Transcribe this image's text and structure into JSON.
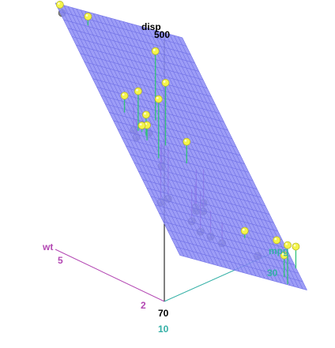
{
  "chart_data": {
    "type": "scatter3d",
    "axes": {
      "z": {
        "label": "disp",
        "tick": "500",
        "color": "#000000"
      },
      "x": {
        "label": "wt",
        "ticks": [
          "5",
          "2"
        ],
        "color": "#b347b3"
      },
      "y": {
        "label": "mpg",
        "ticks": [
          "30",
          "10"
        ],
        "color": "#33b0a6"
      },
      "origin_label": "70"
    },
    "regression_plane": {
      "fill": "#8c8cf5",
      "grid_color": "#6f6fe6",
      "present": true
    },
    "colors": {
      "above_point": "#f4f44a",
      "below_point": "#8a8a8a",
      "above_residual": "#33c27a",
      "below_residual": "#b347b3"
    },
    "points": [
      {
        "wt": 5.42,
        "mpg": 10.4,
        "disp": 472
      },
      {
        "wt": 5.35,
        "mpg": 10.4,
        "disp": 460
      },
      {
        "wt": 5.25,
        "mpg": 14.7,
        "disp": 440
      },
      {
        "wt": 3.84,
        "mpg": 13.3,
        "disp": 350
      },
      {
        "wt": 3.44,
        "mpg": 18.7,
        "disp": 360
      },
      {
        "wt": 3.57,
        "mpg": 14.3,
        "disp": 360
      },
      {
        "wt": 3.73,
        "mpg": 17.3,
        "disp": 275.8
      },
      {
        "wt": 3.78,
        "mpg": 15.2,
        "disp": 275.8
      },
      {
        "wt": 4.07,
        "mpg": 16.4,
        "disp": 275.8
      },
      {
        "wt": 3.52,
        "mpg": 15.5,
        "disp": 318
      },
      {
        "wt": 3.44,
        "mpg": 15.2,
        "disp": 304
      },
      {
        "wt": 3.85,
        "mpg": 19.2,
        "disp": 400
      },
      {
        "wt": 3.46,
        "mpg": 18.1,
        "disp": 225
      },
      {
        "wt": 3.44,
        "mpg": 19.2,
        "disp": 167.6
      },
      {
        "wt": 3.44,
        "mpg": 17.8,
        "disp": 167.6
      },
      {
        "wt": 3.17,
        "mpg": 15.8,
        "disp": 351
      },
      {
        "wt": 3.57,
        "mpg": 15.0,
        "disp": 301
      },
      {
        "wt": 3.19,
        "mpg": 24.4,
        "disp": 146.7
      },
      {
        "wt": 3.15,
        "mpg": 22.8,
        "disp": 140.8
      },
      {
        "wt": 2.88,
        "mpg": 21.0,
        "disp": 160
      },
      {
        "wt": 2.62,
        "mpg": 21.0,
        "disp": 160
      },
      {
        "wt": 2.77,
        "mpg": 19.7,
        "disp": 145
      },
      {
        "wt": 3.22,
        "mpg": 21.4,
        "disp": 258
      },
      {
        "wt": 2.78,
        "mpg": 21.4,
        "disp": 121
      },
      {
        "wt": 2.47,
        "mpg": 21.5,
        "disp": 120.1
      },
      {
        "wt": 2.32,
        "mpg": 22.8,
        "disp": 108
      },
      {
        "wt": 2.14,
        "mpg": 26.0,
        "disp": 120.3
      },
      {
        "wt": 2.2,
        "mpg": 32.4,
        "disp": 78.7
      },
      {
        "wt": 1.62,
        "mpg": 30.4,
        "disp": 75.7
      },
      {
        "wt": 1.84,
        "mpg": 33.9,
        "disp": 71.1
      },
      {
        "wt": 1.94,
        "mpg": 27.3,
        "disp": 79
      },
      {
        "wt": 1.51,
        "mpg": 30.4,
        "disp": 95.1
      }
    ]
  }
}
